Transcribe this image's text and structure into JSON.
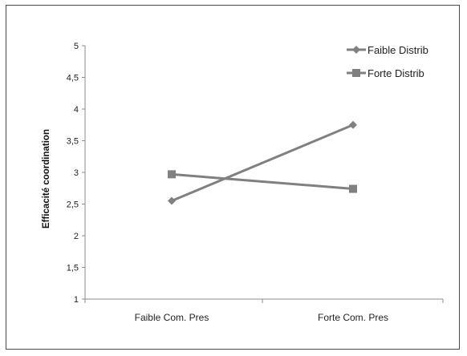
{
  "chart_data": {
    "type": "line",
    "title": "",
    "xlabel": "",
    "ylabel": "Efficacité coordination",
    "categories": [
      "Faible Com. Pres",
      "Forte Com. Pres"
    ],
    "ylim": [
      1,
      5
    ],
    "yticks": [
      "1",
      "1,5",
      "2",
      "2,5",
      "3",
      "3,5",
      "4",
      "4,5",
      "5"
    ],
    "grid": false,
    "legend_position": "top-right",
    "series": [
      {
        "name": "Faible Distrib",
        "values": [
          2.55,
          3.75
        ],
        "marker": "diamond",
        "color": "#808080"
      },
      {
        "name": "Forte Distrib",
        "values": [
          2.97,
          2.74
        ],
        "marker": "square",
        "color": "#808080"
      }
    ]
  }
}
